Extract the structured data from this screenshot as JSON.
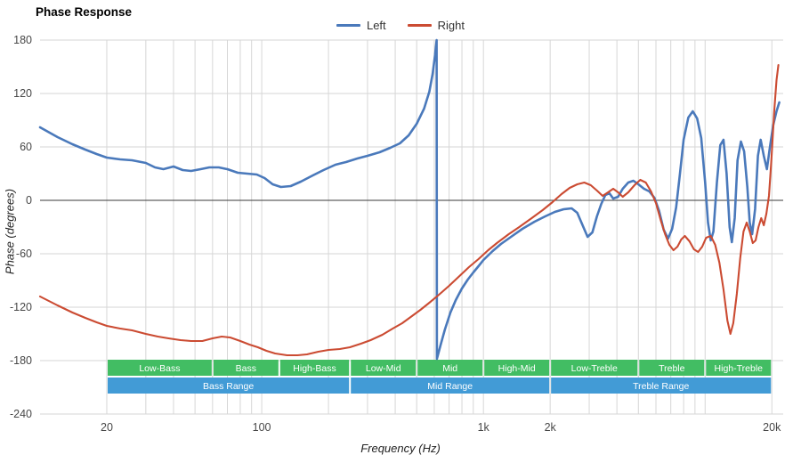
{
  "title": "Phase Response",
  "legend": {
    "items": [
      {
        "label": "Left",
        "color": "#4a79bb"
      },
      {
        "label": "Right",
        "color": "#cb4b32"
      }
    ]
  },
  "axes": {
    "x_title": "Frequency (Hz)",
    "y_title": "Phase (degrees)"
  },
  "colors": {
    "grid": "#d6d6d6",
    "zero_line": "#3a3a3a",
    "background": "#ffffff"
  },
  "chart_data": {
    "type": "line",
    "title": "Phase Response",
    "xlabel": "Frequency (Hz)",
    "ylabel": "Phase (degrees)",
    "x_scale": "log",
    "xlim": [
      10,
      22500
    ],
    "ylim": [
      -240,
      180
    ],
    "grid": true,
    "legend_position": "top-center",
    "x_ticks": [
      {
        "value": 20,
        "label": "20"
      },
      {
        "value": 100,
        "label": "100"
      },
      {
        "value": 1000,
        "label": "1k"
      },
      {
        "value": 2000,
        "label": "2k"
      },
      {
        "value": 20000,
        "label": "20k"
      }
    ],
    "y_ticks": [
      {
        "value": 180,
        "label": "180"
      },
      {
        "value": 120,
        "label": "120"
      },
      {
        "value": 60,
        "label": "60"
      },
      {
        "value": 0,
        "label": "0"
      },
      {
        "value": -60,
        "label": "-60"
      },
      {
        "value": -120,
        "label": "-120"
      },
      {
        "value": -180,
        "label": "-180"
      },
      {
        "value": -240,
        "label": "-240"
      }
    ],
    "x_gridlines": [
      20,
      30,
      40,
      50,
      60,
      70,
      80,
      90,
      100,
      200,
      300,
      400,
      500,
      600,
      700,
      800,
      900,
      1000,
      2000,
      3000,
      4000,
      5000,
      6000,
      7000,
      8000,
      9000,
      10000,
      20000
    ],
    "zero_line": 0,
    "series": [
      {
        "name": "Left",
        "color": "#4a79bb",
        "width": 2.6,
        "points": [
          [
            10,
            82
          ],
          [
            12,
            71
          ],
          [
            14,
            63
          ],
          [
            16,
            57
          ],
          [
            18,
            52
          ],
          [
            20,
            48
          ],
          [
            23,
            46
          ],
          [
            26,
            45
          ],
          [
            30,
            42
          ],
          [
            33,
            37
          ],
          [
            36,
            35
          ],
          [
            40,
            38
          ],
          [
            44,
            34
          ],
          [
            48,
            33
          ],
          [
            53,
            35
          ],
          [
            58,
            37
          ],
          [
            64,
            37
          ],
          [
            70,
            35
          ],
          [
            78,
            31
          ],
          [
            86,
            30
          ],
          [
            95,
            29
          ],
          [
            103,
            25
          ],
          [
            112,
            18
          ],
          [
            122,
            15
          ],
          [
            135,
            16
          ],
          [
            150,
            21
          ],
          [
            170,
            28
          ],
          [
            190,
            34
          ],
          [
            215,
            40
          ],
          [
            240,
            43
          ],
          [
            270,
            47
          ],
          [
            300,
            50
          ],
          [
            340,
            54
          ],
          [
            380,
            59
          ],
          [
            420,
            64
          ],
          [
            460,
            73
          ],
          [
            500,
            86
          ],
          [
            540,
            103
          ],
          [
            570,
            122
          ],
          [
            590,
            142
          ],
          [
            605,
            163
          ],
          [
            615,
            180
          ],
          [
            617,
            -178
          ],
          [
            640,
            -163
          ],
          [
            670,
            -145
          ],
          [
            710,
            -126
          ],
          [
            750,
            -112
          ],
          [
            800,
            -99
          ],
          [
            850,
            -89
          ],
          [
            900,
            -81
          ],
          [
            950,
            -74
          ],
          [
            1000,
            -67
          ],
          [
            1100,
            -57
          ],
          [
            1200,
            -49
          ],
          [
            1350,
            -40
          ],
          [
            1500,
            -32
          ],
          [
            1700,
            -24
          ],
          [
            1900,
            -18
          ],
          [
            2100,
            -13
          ],
          [
            2300,
            -10
          ],
          [
            2500,
            -9
          ],
          [
            2650,
            -14
          ],
          [
            2800,
            -28
          ],
          [
            2950,
            -41
          ],
          [
            3100,
            -36
          ],
          [
            3250,
            -18
          ],
          [
            3400,
            -4
          ],
          [
            3550,
            6
          ],
          [
            3700,
            8
          ],
          [
            3850,
            2
          ],
          [
            4050,
            4
          ],
          [
            4250,
            13
          ],
          [
            4500,
            20
          ],
          [
            4750,
            22
          ],
          [
            5000,
            18
          ],
          [
            5300,
            13
          ],
          [
            5600,
            10
          ],
          [
            5900,
            3
          ],
          [
            6200,
            -12
          ],
          [
            6500,
            -33
          ],
          [
            6800,
            -43
          ],
          [
            7100,
            -32
          ],
          [
            7400,
            -8
          ],
          [
            7700,
            30
          ],
          [
            8000,
            68
          ],
          [
            8400,
            93
          ],
          [
            8800,
            100
          ],
          [
            9200,
            92
          ],
          [
            9600,
            70
          ],
          [
            10000,
            20
          ],
          [
            10300,
            -25
          ],
          [
            10600,
            -45
          ],
          [
            10900,
            -35
          ],
          [
            11300,
            20
          ],
          [
            11700,
            62
          ],
          [
            12100,
            68
          ],
          [
            12500,
            30
          ],
          [
            12900,
            -30
          ],
          [
            13200,
            -47
          ],
          [
            13600,
            -20
          ],
          [
            14000,
            45
          ],
          [
            14500,
            66
          ],
          [
            15000,
            55
          ],
          [
            15500,
            15
          ],
          [
            15900,
            -25
          ],
          [
            16300,
            -38
          ],
          [
            16800,
            -10
          ],
          [
            17300,
            50
          ],
          [
            17800,
            68
          ],
          [
            18400,
            50
          ],
          [
            19000,
            35
          ],
          [
            19600,
            60
          ],
          [
            20300,
            85
          ],
          [
            21000,
            100
          ],
          [
            21600,
            110
          ]
        ]
      },
      {
        "name": "Right",
        "color": "#cb4b32",
        "width": 2.1,
        "points": [
          [
            10,
            -108
          ],
          [
            12,
            -118
          ],
          [
            14,
            -126
          ],
          [
            16,
            -132
          ],
          [
            18,
            -137
          ],
          [
            20,
            -141
          ],
          [
            23,
            -144
          ],
          [
            26,
            -146
          ],
          [
            30,
            -150
          ],
          [
            34,
            -153
          ],
          [
            38,
            -155
          ],
          [
            43,
            -157
          ],
          [
            48,
            -158
          ],
          [
            54,
            -158
          ],
          [
            60,
            -155
          ],
          [
            66,
            -153
          ],
          [
            72,
            -154
          ],
          [
            80,
            -158
          ],
          [
            88,
            -162
          ],
          [
            96,
            -165
          ],
          [
            105,
            -169
          ],
          [
            115,
            -172
          ],
          [
            130,
            -174
          ],
          [
            145,
            -174
          ],
          [
            160,
            -173
          ],
          [
            180,
            -170
          ],
          [
            200,
            -168
          ],
          [
            225,
            -167
          ],
          [
            250,
            -165
          ],
          [
            280,
            -161
          ],
          [
            310,
            -157
          ],
          [
            350,
            -151
          ],
          [
            390,
            -144
          ],
          [
            430,
            -138
          ],
          [
            470,
            -131
          ],
          [
            520,
            -123
          ],
          [
            570,
            -115
          ],
          [
            630,
            -106
          ],
          [
            700,
            -96
          ],
          [
            780,
            -85
          ],
          [
            860,
            -75
          ],
          [
            950,
            -66
          ],
          [
            1050,
            -56
          ],
          [
            1150,
            -48
          ],
          [
            1300,
            -38
          ],
          [
            1450,
            -30
          ],
          [
            1650,
            -20
          ],
          [
            1850,
            -11
          ],
          [
            2050,
            -2
          ],
          [
            2250,
            7
          ],
          [
            2450,
            14
          ],
          [
            2650,
            18
          ],
          [
            2850,
            20
          ],
          [
            3050,
            17
          ],
          [
            3250,
            11
          ],
          [
            3450,
            5
          ],
          [
            3650,
            9
          ],
          [
            3850,
            13
          ],
          [
            4050,
            9
          ],
          [
            4250,
            4
          ],
          [
            4500,
            9
          ],
          [
            4800,
            17
          ],
          [
            5100,
            23
          ],
          [
            5400,
            20
          ],
          [
            5700,
            10
          ],
          [
            6000,
            -3
          ],
          [
            6300,
            -22
          ],
          [
            6600,
            -38
          ],
          [
            6900,
            -50
          ],
          [
            7200,
            -56
          ],
          [
            7500,
            -52
          ],
          [
            7800,
            -44
          ],
          [
            8100,
            -40
          ],
          [
            8500,
            -46
          ],
          [
            8900,
            -55
          ],
          [
            9300,
            -58
          ],
          [
            9700,
            -52
          ],
          [
            10100,
            -42
          ],
          [
            10600,
            -40
          ],
          [
            11100,
            -50
          ],
          [
            11600,
            -70
          ],
          [
            12100,
            -100
          ],
          [
            12600,
            -135
          ],
          [
            13000,
            -150
          ],
          [
            13400,
            -138
          ],
          [
            13900,
            -105
          ],
          [
            14400,
            -65
          ],
          [
            14900,
            -35
          ],
          [
            15400,
            -25
          ],
          [
            15900,
            -35
          ],
          [
            16400,
            -48
          ],
          [
            16900,
            -45
          ],
          [
            17400,
            -30
          ],
          [
            17900,
            -20
          ],
          [
            18400,
            -28
          ],
          [
            18900,
            -15
          ],
          [
            19400,
            5
          ],
          [
            19900,
            45
          ],
          [
            20500,
            100
          ],
          [
            21000,
            135
          ],
          [
            21400,
            152
          ]
        ]
      }
    ],
    "bands": {
      "sub_color": "#42bd63",
      "main_color": "#429bd6",
      "text_color": "#ffffff",
      "sub": [
        {
          "label": "Low-Bass",
          "range": [
            20,
            60
          ]
        },
        {
          "label": "Bass",
          "range": [
            60,
            120
          ]
        },
        {
          "label": "High-Bass",
          "range": [
            120,
            250
          ]
        },
        {
          "label": "Low-Mid",
          "range": [
            250,
            500
          ]
        },
        {
          "label": "Mid",
          "range": [
            500,
            1000
          ]
        },
        {
          "label": "High-Mid",
          "range": [
            1000,
            2000
          ]
        },
        {
          "label": "Low-Treble",
          "range": [
            2000,
            5000
          ]
        },
        {
          "label": "Treble",
          "range": [
            5000,
            10000
          ]
        },
        {
          "label": "High-Treble",
          "range": [
            10000,
            20000
          ]
        }
      ],
      "main": [
        {
          "label": "Bass Range",
          "range": [
            20,
            250
          ]
        },
        {
          "label": "Mid Range",
          "range": [
            250,
            2000
          ]
        },
        {
          "label": "Treble Range",
          "range": [
            2000,
            20000
          ]
        }
      ]
    }
  }
}
